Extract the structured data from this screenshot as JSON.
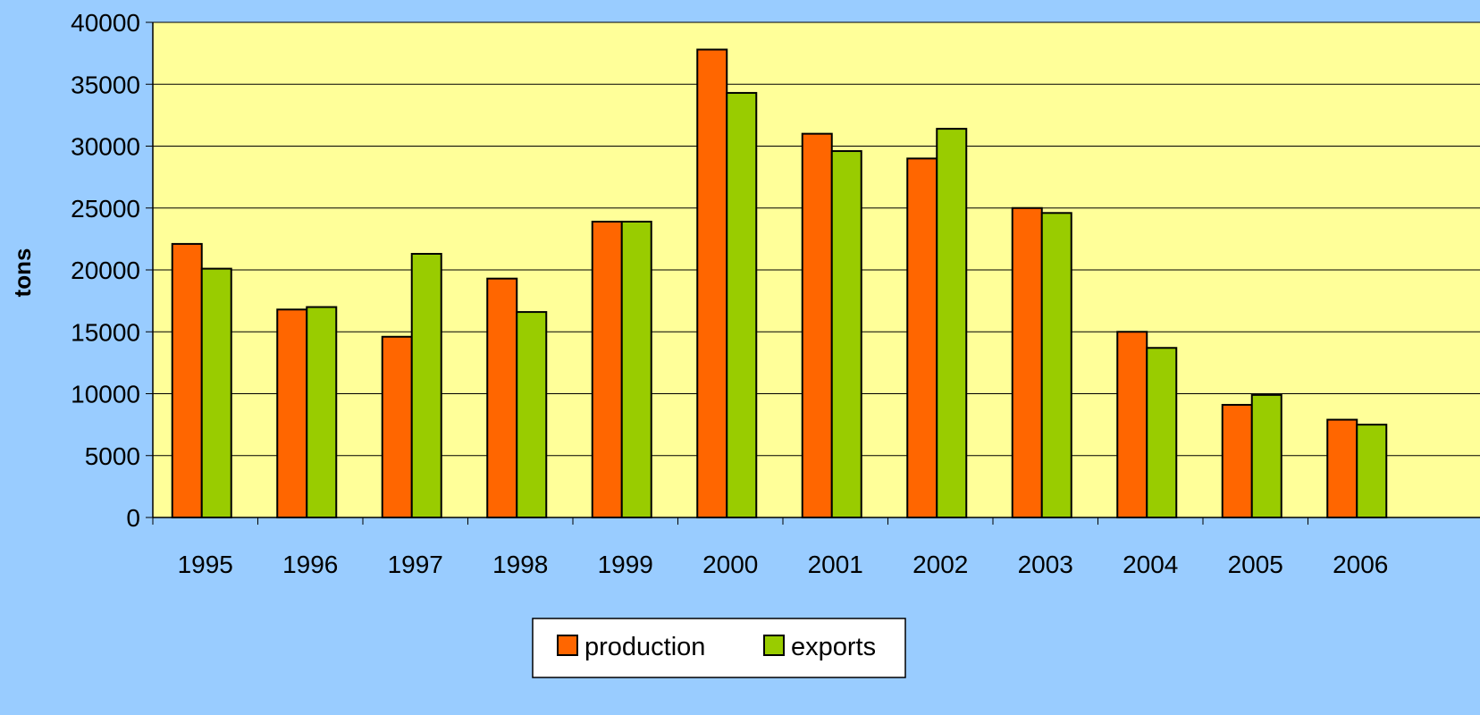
{
  "chart_data": {
    "type": "bar",
    "categories": [
      "1995",
      "1996",
      "1997",
      "1998",
      "1999",
      "2000",
      "2001",
      "2002",
      "2003",
      "2004",
      "2005",
      "2006"
    ],
    "series": [
      {
        "name": "production",
        "color": "#FF6600",
        "values": [
          22100,
          16800,
          14600,
          19300,
          23900,
          37800,
          31000,
          29000,
          25000,
          15000,
          9100,
          7900
        ]
      },
      {
        "name": "exports",
        "color": "#99CC00",
        "values": [
          20100,
          17000,
          21300,
          16600,
          23900,
          34300,
          29600,
          31400,
          24600,
          13700,
          9900,
          7500
        ]
      }
    ],
    "ylabel": "tons",
    "xlabel": "",
    "ylim": [
      0,
      40000
    ],
    "yticks": [
      0,
      5000,
      10000,
      15000,
      20000,
      25000,
      30000,
      35000,
      40000
    ],
    "grid": true,
    "plot_background": "#FFFF99",
    "legend_position": "bottom-center"
  }
}
